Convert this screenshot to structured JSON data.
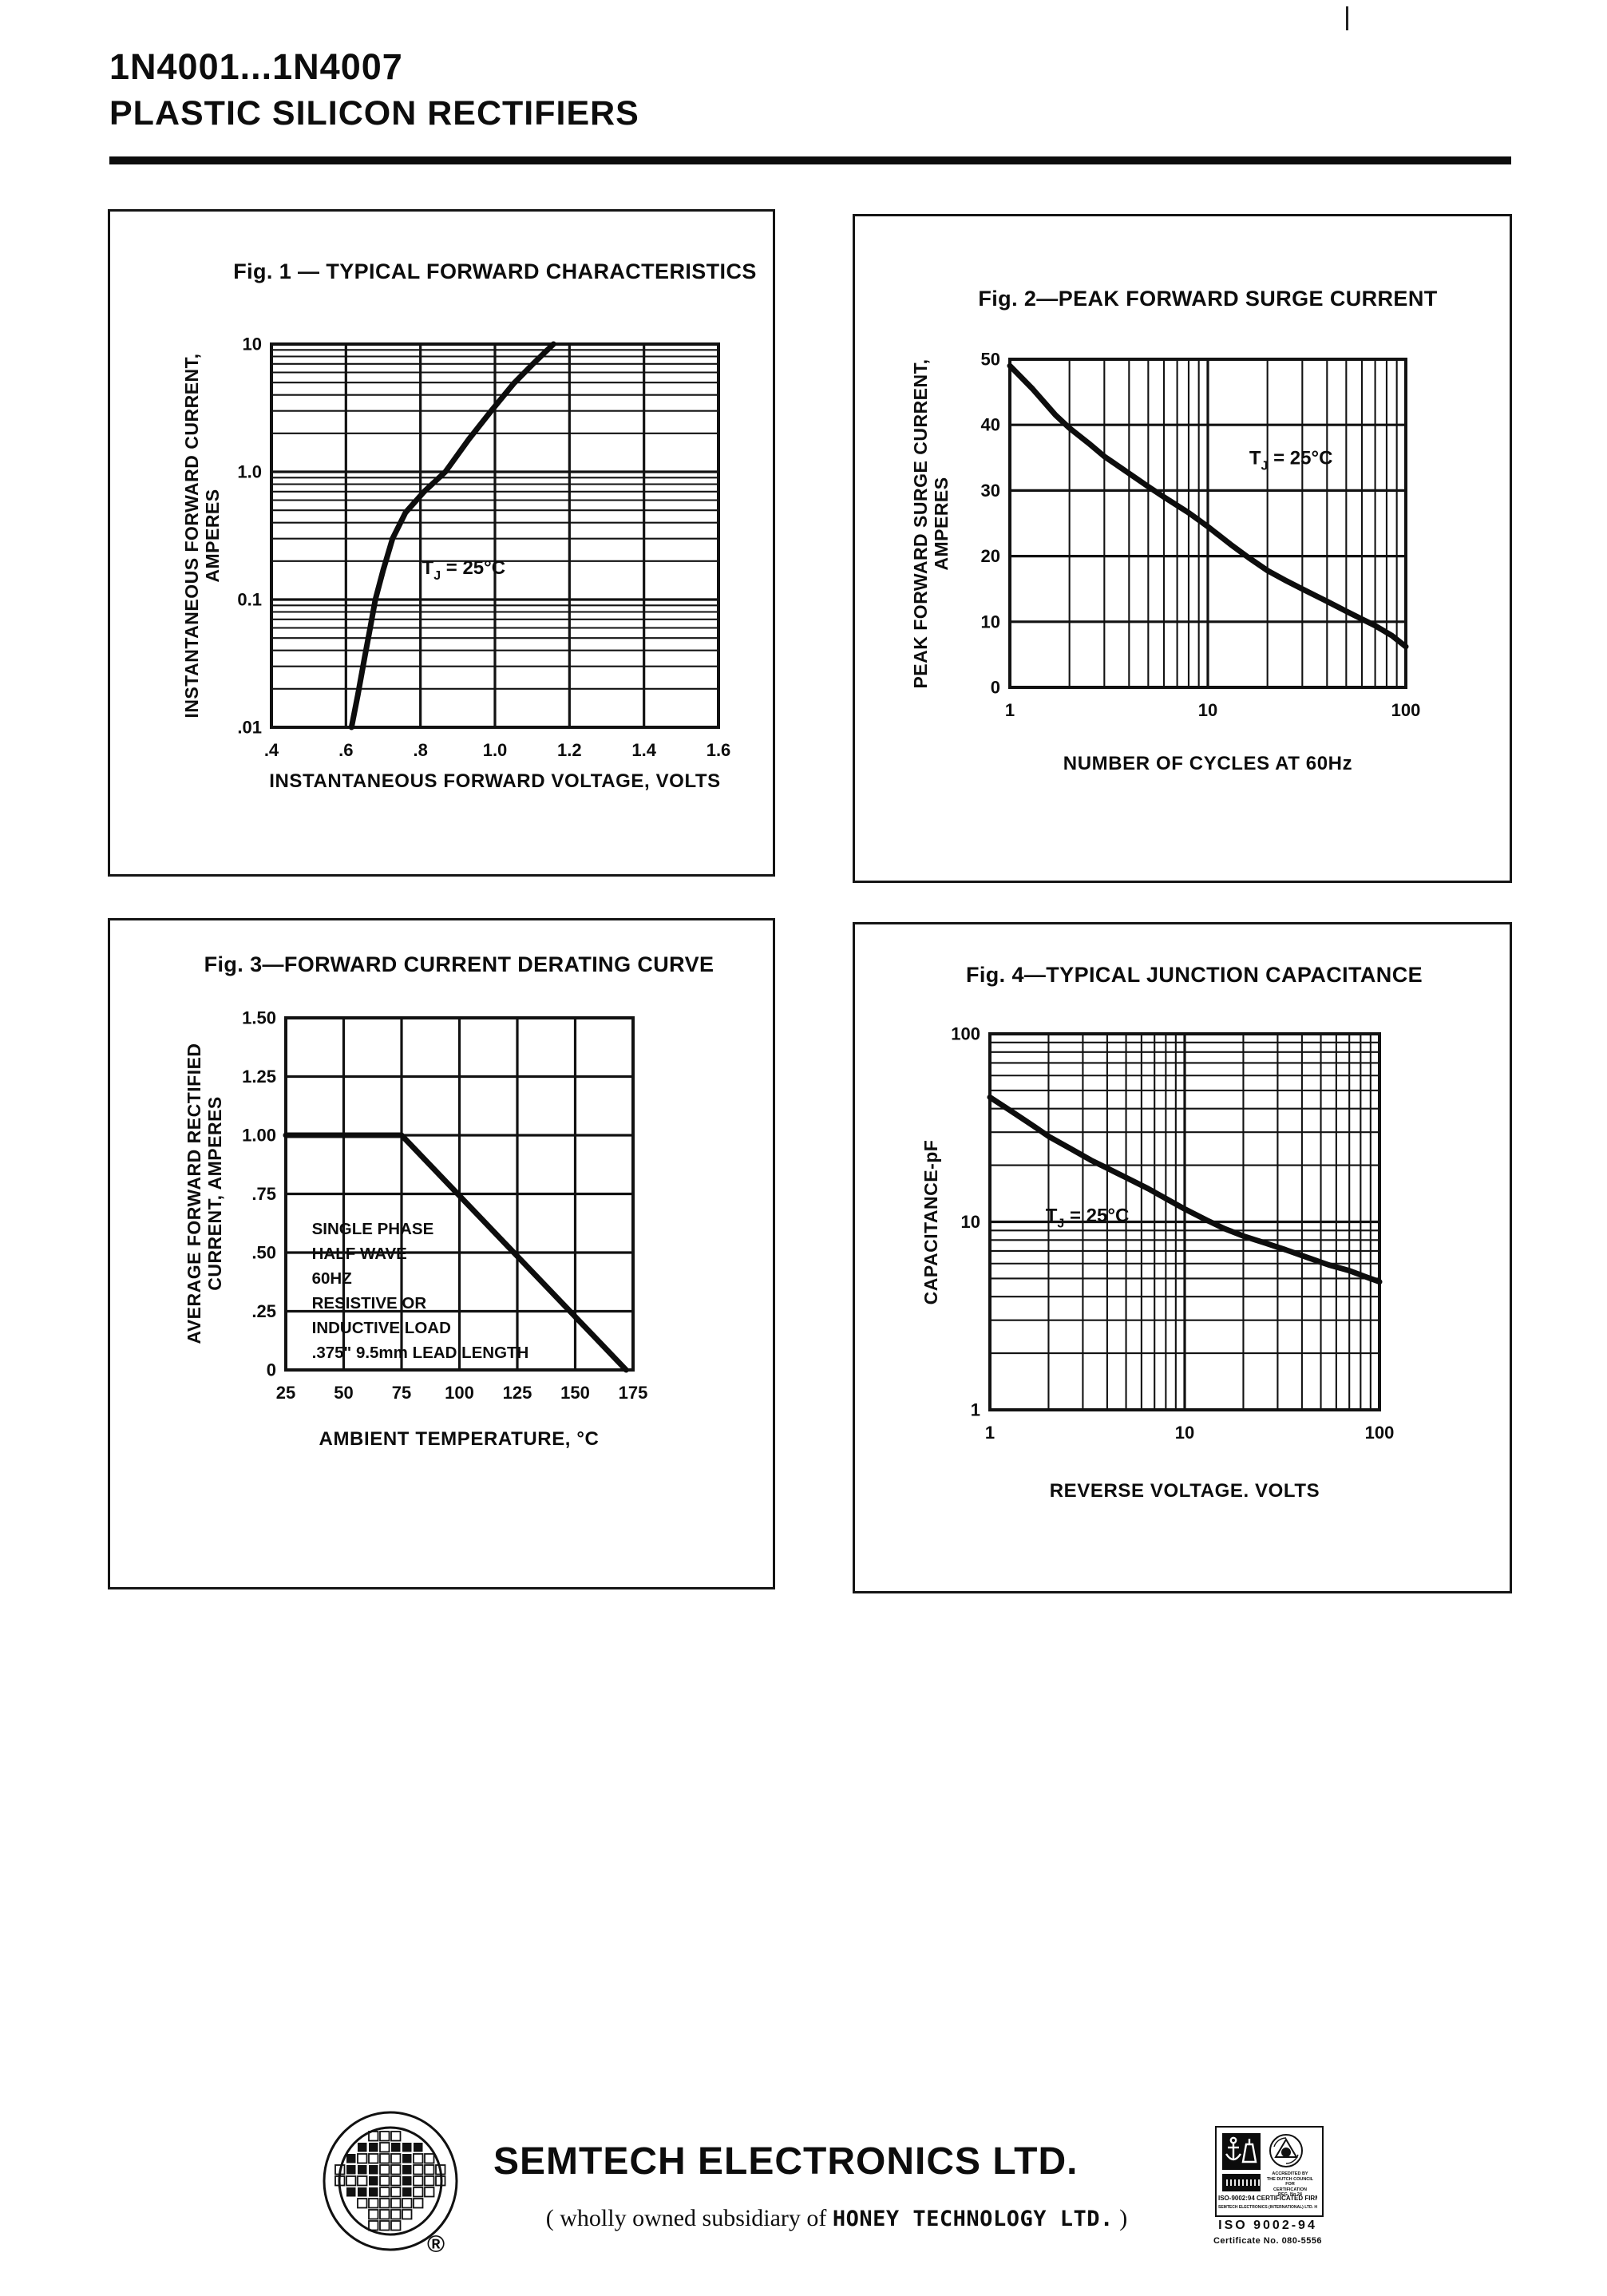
{
  "header": {
    "part_range": "1N4001...1N4007",
    "subtitle": "PLASTIC SILICON RECTIFIERS"
  },
  "chart_data": [
    {
      "id": "fig1",
      "type": "line",
      "title": "Fig. 1 — TYPICAL FORWARD CHARACTERISTICS",
      "xlabel": "INSTANTANEOUS FORWARD VOLTAGE, VOLTS",
      "ylabel": "INSTANTANEOUS FORWARD CURRENT, AMPERES",
      "xscale": "linear",
      "yscale": "log",
      "xlim": [
        0.4,
        1.6
      ],
      "ylim": [
        0.01,
        10
      ],
      "grid": true,
      "legend": "none",
      "xticks": [
        {
          "v": 0.4,
          "label": ".4"
        },
        {
          "v": 0.6,
          "label": ".6"
        },
        {
          "v": 0.8,
          "label": ".8"
        },
        {
          "v": 1.0,
          "label": "1.0"
        },
        {
          "v": 1.2,
          "label": "1.2"
        },
        {
          "v": 1.4,
          "label": "1.4"
        },
        {
          "v": 1.6,
          "label": "1.6"
        }
      ],
      "yticks": [
        {
          "v": 10,
          "label": "10"
        },
        {
          "v": 1,
          "label": "1.0"
        },
        {
          "v": 0.1,
          "label": "0.1"
        },
        {
          "v": 0.01,
          "label": ".01"
        }
      ],
      "series": [
        {
          "name": "typical forward characteristic, TJ = 25C",
          "points": [
            [
              0.615,
              0.01
            ],
            [
              0.632,
              0.018
            ],
            [
              0.65,
              0.035
            ],
            [
              0.665,
              0.06
            ],
            [
              0.679,
              0.1
            ],
            [
              0.7,
              0.17
            ],
            [
              0.725,
              0.3
            ],
            [
              0.76,
              0.48
            ],
            [
              0.81,
              0.7
            ],
            [
              0.867,
              1.0
            ],
            [
              0.93,
              1.8
            ],
            [
              0.99,
              3.0
            ],
            [
              1.05,
              4.9
            ],
            [
              1.1,
              6.9
            ],
            [
              1.157,
              10
            ]
          ]
        }
      ],
      "annotation": {
        "fx": 0.43,
        "fy": 0.6,
        "parts": [
          {
            "t": "T"
          },
          {
            "t": "J",
            "sub": true
          },
          {
            "t": " = 25°C"
          }
        ]
      }
    },
    {
      "id": "fig2",
      "type": "line",
      "title": "Fig. 2—PEAK FORWARD SURGE CURRENT",
      "xlabel": "NUMBER OF CYCLES AT 60Hz",
      "ylabel": "PEAK FORWARD SURGE CURRENT,\nAMPERES",
      "xscale": "log",
      "yscale": "linear",
      "xlim": [
        1,
        100
      ],
      "ylim": [
        0,
        50
      ],
      "grid": true,
      "legend": "none",
      "xticks": [
        {
          "v": 1,
          "label": "1"
        },
        {
          "v": 10,
          "label": "10"
        },
        {
          "v": 100,
          "label": "100"
        }
      ],
      "yticks": [
        {
          "v": 50,
          "label": "50"
        },
        {
          "v": 40,
          "label": "40"
        },
        {
          "v": 30,
          "label": "30"
        },
        {
          "v": 20,
          "label": "20"
        },
        {
          "v": 10,
          "label": "10"
        },
        {
          "v": 0,
          "label": "0"
        }
      ],
      "series": [
        {
          "name": "peak forward surge current, TJ = 25C",
          "points": [
            [
              1,
              49
            ],
            [
              1.3,
              45.5
            ],
            [
              1.7,
              41.5
            ],
            [
              2,
              39.5
            ],
            [
              2.5,
              37.2
            ],
            [
              3,
              35.2
            ],
            [
              4,
              32.6
            ],
            [
              5,
              30.6
            ],
            [
              6,
              29
            ],
            [
              8,
              26.6
            ],
            [
              10,
              24.5
            ],
            [
              13,
              21.8
            ],
            [
              16,
              19.8
            ],
            [
              20,
              17.8
            ],
            [
              25,
              16.2
            ],
            [
              30,
              15
            ],
            [
              40,
              13.1
            ],
            [
              50,
              11.6
            ],
            [
              60,
              10.4
            ],
            [
              70,
              9.4
            ],
            [
              85,
              7.9
            ],
            [
              100,
              6.2
            ]
          ]
        }
      ],
      "annotation": {
        "fx": 0.71,
        "fy": 0.32,
        "parts": [
          {
            "t": "T"
          },
          {
            "t": "J",
            "sub": true
          },
          {
            "t": " = 25°C"
          }
        ]
      }
    },
    {
      "id": "fig3",
      "type": "line",
      "title": "Fig. 3—FORWARD CURRENT DERATING CURVE",
      "xlabel": "AMBIENT TEMPERATURE, °C",
      "ylabel": "AVERAGE FORWARD RECTIFIED\nCURRENT, AMPERES",
      "xscale": "linear",
      "yscale": "linear",
      "xlim": [
        25,
        175
      ],
      "ylim": [
        0,
        1.5
      ],
      "grid": true,
      "legend": "none",
      "xticks": [
        {
          "v": 25,
          "label": "25"
        },
        {
          "v": 50,
          "label": "50"
        },
        {
          "v": 75,
          "label": "75"
        },
        {
          "v": 100,
          "label": "100"
        },
        {
          "v": 125,
          "label": "125"
        },
        {
          "v": 150,
          "label": "150"
        },
        {
          "v": 175,
          "label": "175"
        }
      ],
      "yticks": [
        {
          "v": 1.5,
          "label": "1.50"
        },
        {
          "v": 1.25,
          "label": "1.25"
        },
        {
          "v": 1.0,
          "label": "1.00"
        },
        {
          "v": 0.75,
          "label": ".75"
        },
        {
          "v": 0.5,
          "label": ".50"
        },
        {
          "v": 0.25,
          "label": ".25"
        },
        {
          "v": 0,
          "label": "0"
        }
      ],
      "series": [
        {
          "name": "forward current derating",
          "points": [
            [
              25,
              1.0
            ],
            [
              75,
              1.0
            ],
            [
              172,
              0
            ]
          ]
        }
      ],
      "annotation_block": {
        "fx": 0.075,
        "fy": 0.615,
        "lines": [
          "SINGLE PHASE",
          "HALF WAVE",
          "60HZ",
          "RESISTIVE OR",
          "INDUCTIVE LOAD",
          ".375\"  9.5mm LEAD LENGTH"
        ]
      }
    },
    {
      "id": "fig4",
      "type": "line",
      "title": "Fig. 4—TYPICAL JUNCTION CAPACITANCE",
      "xlabel": "REVERSE VOLTAGE. VOLTS",
      "ylabel": "CAPACITANCE-pF",
      "xscale": "log",
      "yscale": "log",
      "xlim": [
        1,
        100
      ],
      "ylim": [
        1,
        100
      ],
      "grid": true,
      "legend": "none",
      "xticks": [
        {
          "v": 1,
          "label": "1"
        },
        {
          "v": 10,
          "label": "10"
        },
        {
          "v": 100,
          "label": "100"
        }
      ],
      "yticks": [
        {
          "v": 100,
          "label": "100"
        },
        {
          "v": 10,
          "label": "10"
        },
        {
          "v": 1,
          "label": "1"
        }
      ],
      "series": [
        {
          "name": "typical junction capacitance, TJ = 25C",
          "points": [
            [
              1,
              46
            ],
            [
              1.3,
              38.5
            ],
            [
              1.7,
              32
            ],
            [
              2,
              28.5
            ],
            [
              2.6,
              24.5
            ],
            [
              3.3,
              21.3
            ],
            [
              4,
              19.3
            ],
            [
              5,
              17.2
            ],
            [
              6.5,
              15
            ],
            [
              8,
              13.3
            ],
            [
              10,
              11.7
            ],
            [
              13,
              10.2
            ],
            [
              16,
              9.2
            ],
            [
              20,
              8.4
            ],
            [
              26,
              7.7
            ],
            [
              33,
              7.1
            ],
            [
              42,
              6.5
            ],
            [
              55,
              5.9
            ],
            [
              70,
              5.5
            ],
            [
              85,
              5.1
            ],
            [
              100,
              4.8
            ]
          ]
        }
      ],
      "annotation": {
        "fx": 0.25,
        "fy": 0.5,
        "parts": [
          {
            "t": "T"
          },
          {
            "t": "J",
            "sub": true
          },
          {
            "t": " = 25°C"
          }
        ]
      }
    }
  ],
  "footer": {
    "company": "SEMTECH ELECTRONICS LTD.",
    "subsidiary_prefix": "( wholly owned subsidiary of",
    "subsidiary_company": "HONEY TECHNOLOGY LTD.",
    "subsidiary_close": ")",
    "registered": "®",
    "iso": {
      "accredited": "ACCREDITED BY\nTHE DUTCH COUNCIL FOR\nCERTIFICATION\nREG. No 24",
      "cert_firm": "ISO-9002:94 CERTIFICATED FIRM",
      "cert_sub": "SEMTECH ELECTRONICS (INTERNATIONAL) LTD.  HONG KONG",
      "iso_line": "ISO 9002-94",
      "cert_no": "Certificate No. 080-5556"
    }
  }
}
